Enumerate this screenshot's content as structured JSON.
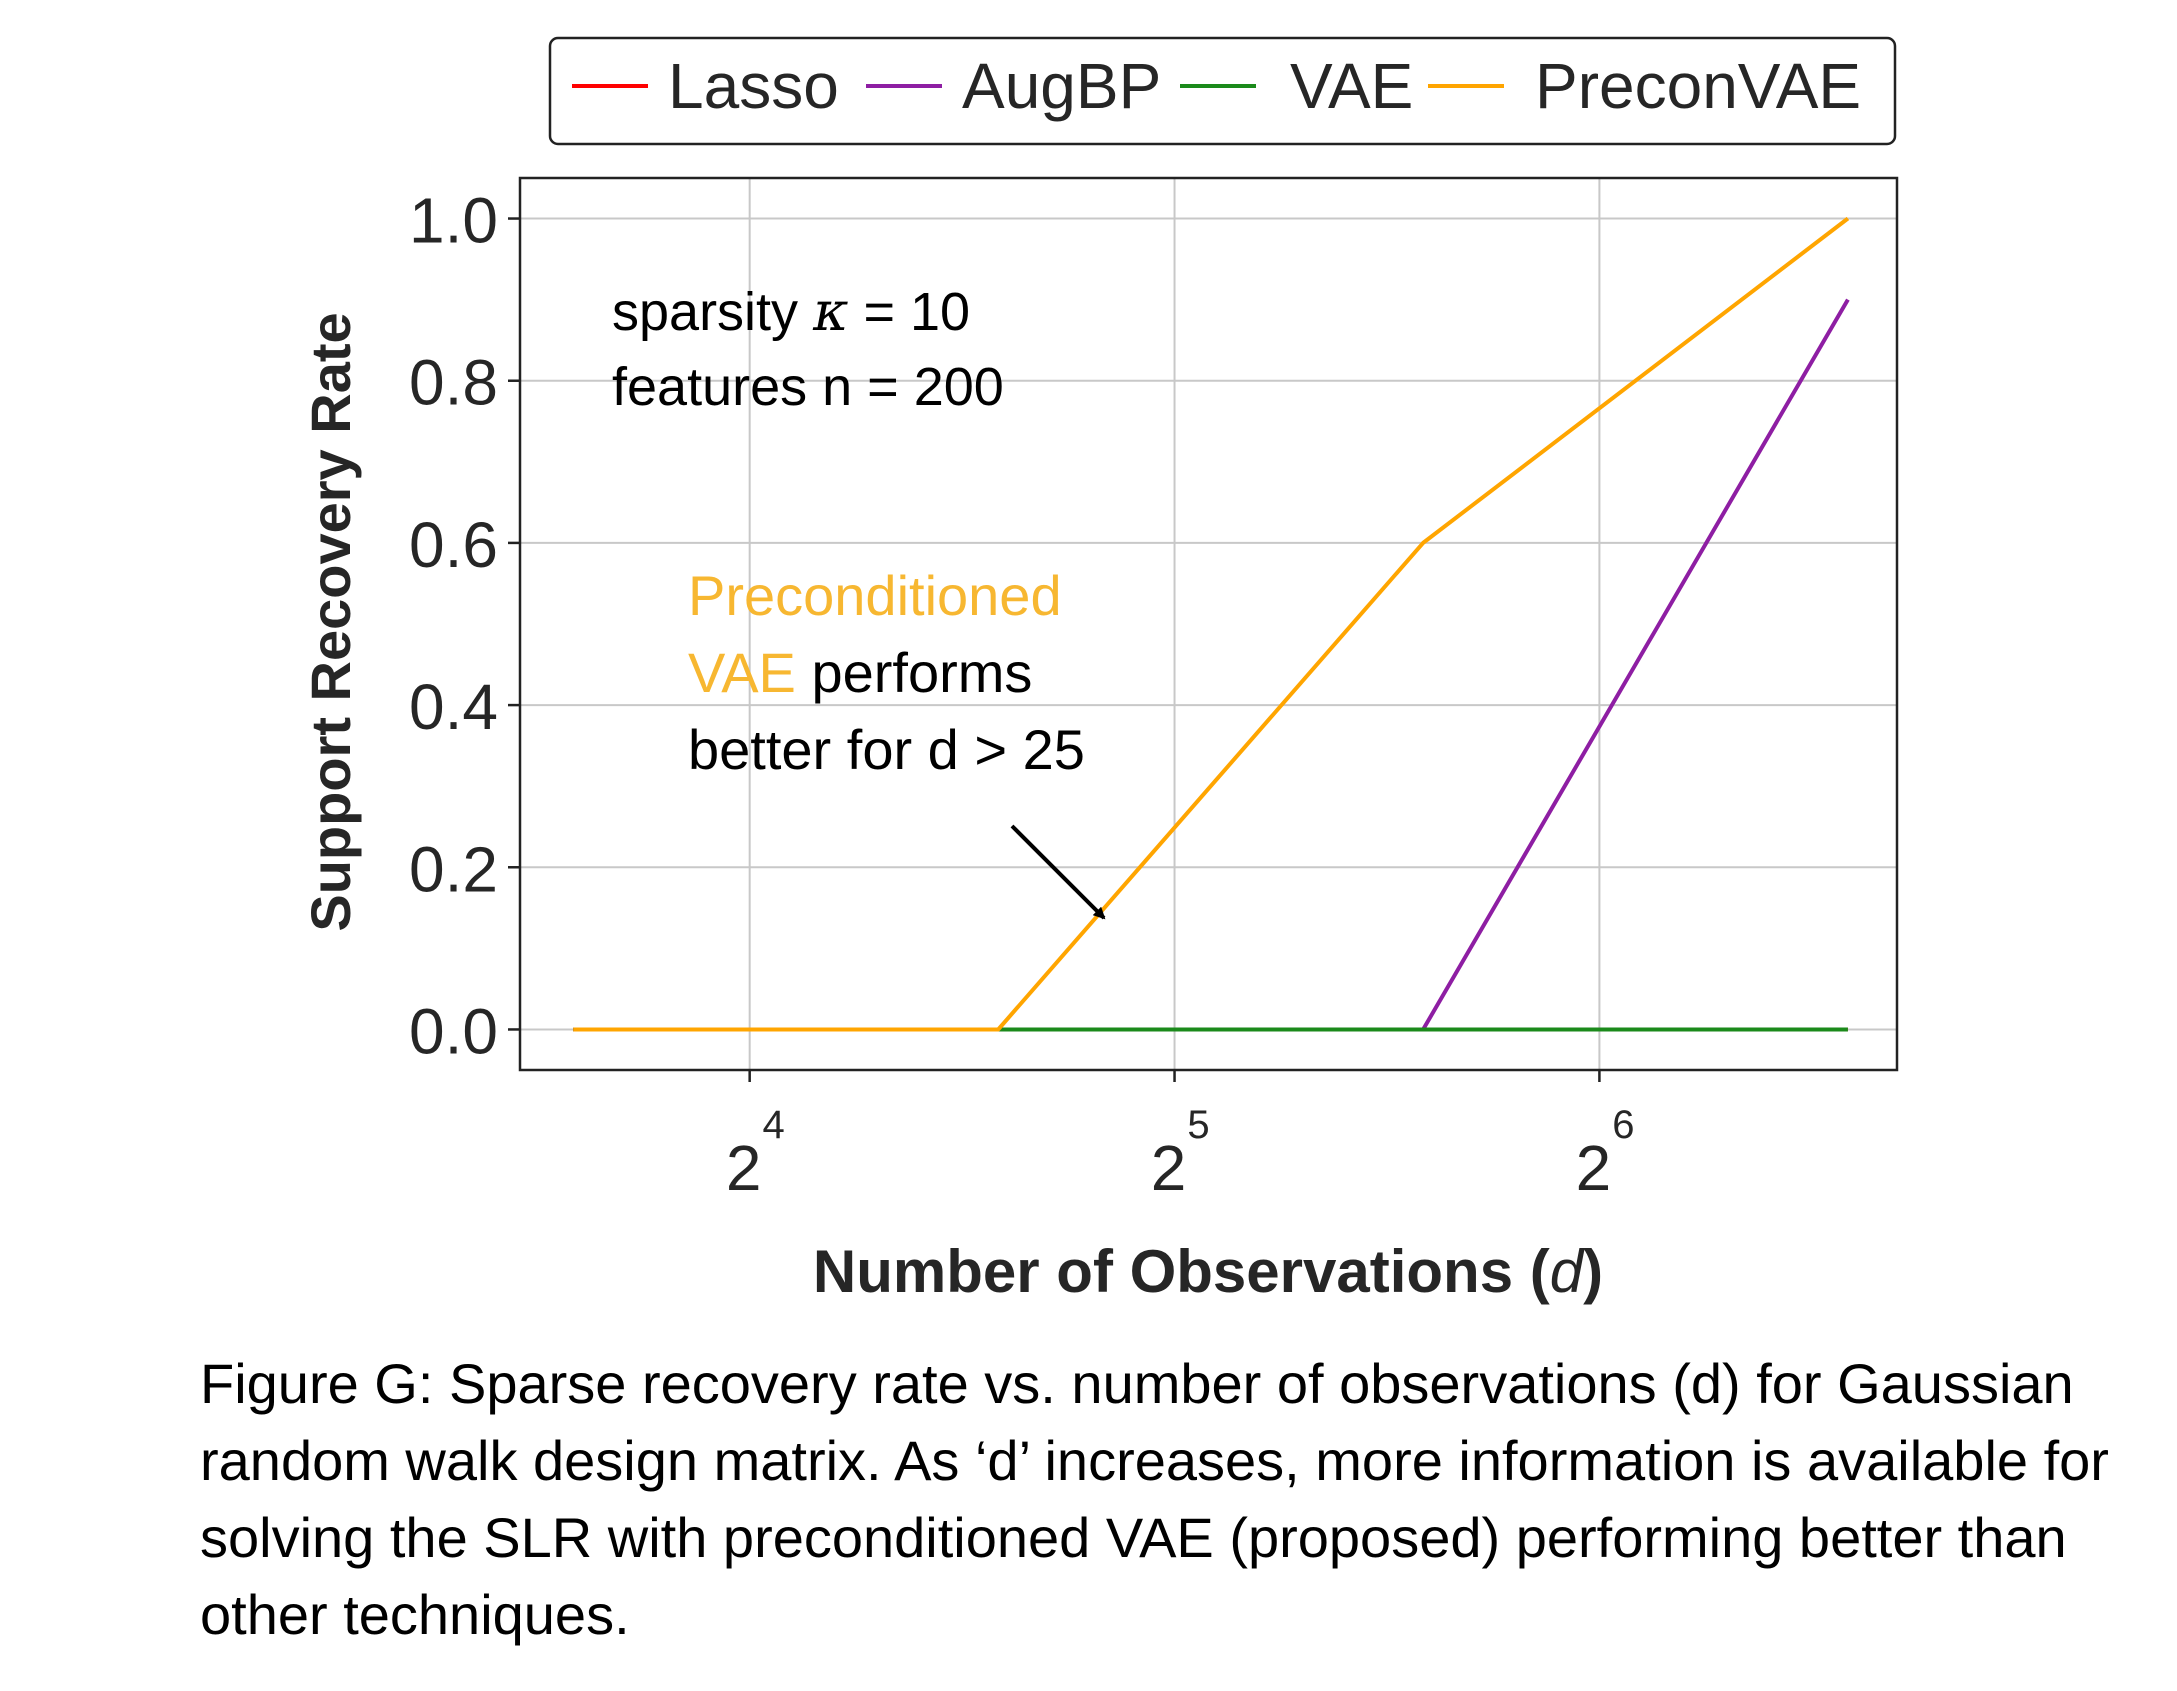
{
  "chart_data": {
    "type": "line",
    "x_scale": "log2",
    "x": [
      12,
      24,
      48,
      96
    ],
    "xticks": [
      16,
      32,
      64
    ],
    "xtick_base": "2",
    "xtick_exponents": [
      "4",
      "5",
      "6"
    ],
    "xlim": [
      11,
      104
    ],
    "xlabel": "Number of Observations (",
    "xlabel_var": "d",
    "xlabel_close": ")",
    "ylabel": "Support Recovery Rate",
    "ylim": [
      -0.05,
      1.05
    ],
    "yticks": [
      "0.0",
      "0.2",
      "0.4",
      "0.6",
      "0.8",
      "1.0"
    ],
    "grid": true,
    "legend_position": "top-center",
    "series": [
      {
        "name": "Lasso",
        "color": "#ff0000",
        "values": [
          0.0,
          0.0,
          0.0,
          0.0
        ]
      },
      {
        "name": "AugBP",
        "color": "#8e1ea3",
        "values": [
          0.0,
          0.0,
          0.0,
          0.9
        ]
      },
      {
        "name": "VAE",
        "color": "#1b8a1b",
        "values": [
          0.0,
          0.0,
          0.0,
          0.0
        ]
      },
      {
        "name": "PreconVAE",
        "color": "#ffa500",
        "values": [
          0.0,
          0.0,
          0.6,
          1.0
        ]
      }
    ],
    "annotations": {
      "params_line1_prefix": "sparsity ",
      "params_line1_symbol": "κ",
      "params_line1_suffix": " = 10",
      "params_line2": "features n = 200",
      "note_highlight_1": "Preconditioned",
      "note_highlight_2": "VAE",
      "note_rest_2": " performs",
      "note_line3": "better for d > 25",
      "highlight_color": "#f7b731"
    }
  },
  "caption": "Figure G: Sparse recovery rate vs. number of observations (d) for Gaussian random walk design matrix. As ‘d’ increases, more information is available for solving the SLR with preconditioned VAE (proposed) performing better than other techniques."
}
